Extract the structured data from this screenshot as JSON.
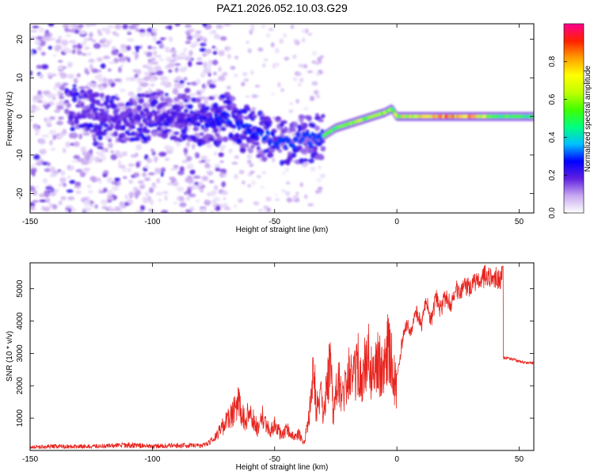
{
  "figure_title": "PAZ1.2026.052.10.03.G29",
  "chart_data": [
    {
      "type": "heatmap",
      "title": "",
      "xlabel": "Height of straight line (km)",
      "ylabel": "Frequency (Hz)",
      "xlim": [
        -150,
        56
      ],
      "ylim": [
        -25,
        24
      ],
      "x_ticks": [
        "-150",
        "-100",
        "-50",
        "0",
        "50"
      ],
      "x_tick_values": [
        -150,
        -100,
        -50,
        0,
        50
      ],
      "y_ticks": [
        "20",
        "10",
        "0",
        "-10",
        "-20"
      ],
      "y_tick_values": [
        20,
        10,
        0,
        -10,
        -20
      ],
      "colorbar": {
        "label": "Normalized spectral amplitude",
        "range": [
          0.0,
          1.0
        ],
        "ticks": [
          "0.0",
          "0.2",
          "0.4",
          "0.6",
          "0.8"
        ],
        "tick_values": [
          0.0,
          0.2,
          0.4,
          0.6,
          0.8
        ],
        "colormap": [
          "#ffffff",
          "#c8a8f0",
          "#6020e0",
          "#0000ff",
          "#00c0ff",
          "#00ff80",
          "#40ff00",
          "#c0ff00",
          "#ffff00",
          "#ffa000",
          "#ff2000",
          "#ff0090"
        ]
      },
      "ridge": {
        "description_values": "dominant frequency trace",
        "x": [
          -130,
          -120,
          -110,
          -100,
          -90,
          -80,
          -70,
          -60,
          -55,
          -50,
          -45,
          -40,
          -35,
          -30,
          -25,
          -20,
          -15,
          -10,
          -5,
          -2,
          0,
          10,
          20,
          30,
          40,
          50,
          56
        ],
        "y": [
          2.5,
          0,
          -1,
          0,
          0,
          -2,
          0,
          -4,
          -5,
          -6,
          -7,
          -6,
          -6,
          -5,
          -3,
          -2,
          -1,
          0,
          1,
          2,
          0,
          0,
          0,
          0,
          0,
          0,
          0
        ],
        "amplitude": [
          0.15,
          0.18,
          0.2,
          0.2,
          0.22,
          0.25,
          0.28,
          0.3,
          0.32,
          0.35,
          0.4,
          0.45,
          0.5,
          0.55,
          0.55,
          0.6,
          0.6,
          0.65,
          0.65,
          0.55,
          0.7,
          0.75,
          0.85,
          0.85,
          0.55,
          0.5,
          0.5
        ]
      }
    },
    {
      "type": "line",
      "title": "",
      "xlabel": "Height of straight line (km)",
      "ylabel": "SNR (10 * v/v)",
      "xlim": [
        -150,
        56
      ],
      "ylim": [
        0,
        5800
      ],
      "x_ticks": [
        "-150",
        "-100",
        "-50",
        "0",
        "50"
      ],
      "x_tick_values": [
        -150,
        -100,
        -50,
        0,
        50
      ],
      "y_ticks": [
        "1000",
        "2000",
        "3000",
        "4000",
        "5000"
      ],
      "y_tick_values": [
        1000,
        2000,
        3000,
        4000,
        5000
      ],
      "series": [
        {
          "name": "SNR",
          "color": "#e8241e",
          "x": [
            -150,
            -140,
            -130,
            -120,
            -110,
            -100,
            -90,
            -80,
            -75,
            -72,
            -70,
            -67,
            -65,
            -62,
            -60,
            -57,
            -55,
            -52,
            -50,
            -47,
            -45,
            -42,
            -40,
            -38,
            -36,
            -35,
            -34,
            -33,
            -31,
            -30,
            -29,
            -28,
            -27,
            -26,
            -25,
            -24,
            -22,
            -20,
            -18,
            -16,
            -14,
            -12,
            -10,
            -8,
            -6,
            -4,
            -2,
            0,
            2,
            4,
            6,
            8,
            10,
            12,
            14,
            16,
            18,
            20,
            22,
            24,
            26,
            28,
            30,
            32,
            34,
            36,
            38,
            40,
            42,
            43,
            43.5,
            45,
            48,
            50,
            53,
            56
          ],
          "y": [
            120,
            150,
            140,
            160,
            200,
            150,
            180,
            180,
            450,
            900,
            1200,
            1600,
            2000,
            1300,
            1700,
            900,
            1400,
            800,
            1100,
            600,
            900,
            500,
            700,
            300,
            1400,
            2500,
            3700,
            1800,
            2200,
            1600,
            2600,
            3200,
            4500,
            1200,
            2400,
            3000,
            2100,
            3300,
            2800,
            3800,
            3100,
            4200,
            3000,
            3900,
            3400,
            4500,
            3800,
            2400,
            3500,
            4200,
            3800,
            4600,
            4100,
            4900,
            4300,
            5000,
            4600,
            5100,
            4800,
            5300,
            5100,
            5400,
            5300,
            5600,
            5500,
            5750,
            5650,
            5700,
            5600,
            5700,
            2900,
            2900,
            2850,
            2800,
            2750,
            2750
          ]
        }
      ]
    }
  ]
}
